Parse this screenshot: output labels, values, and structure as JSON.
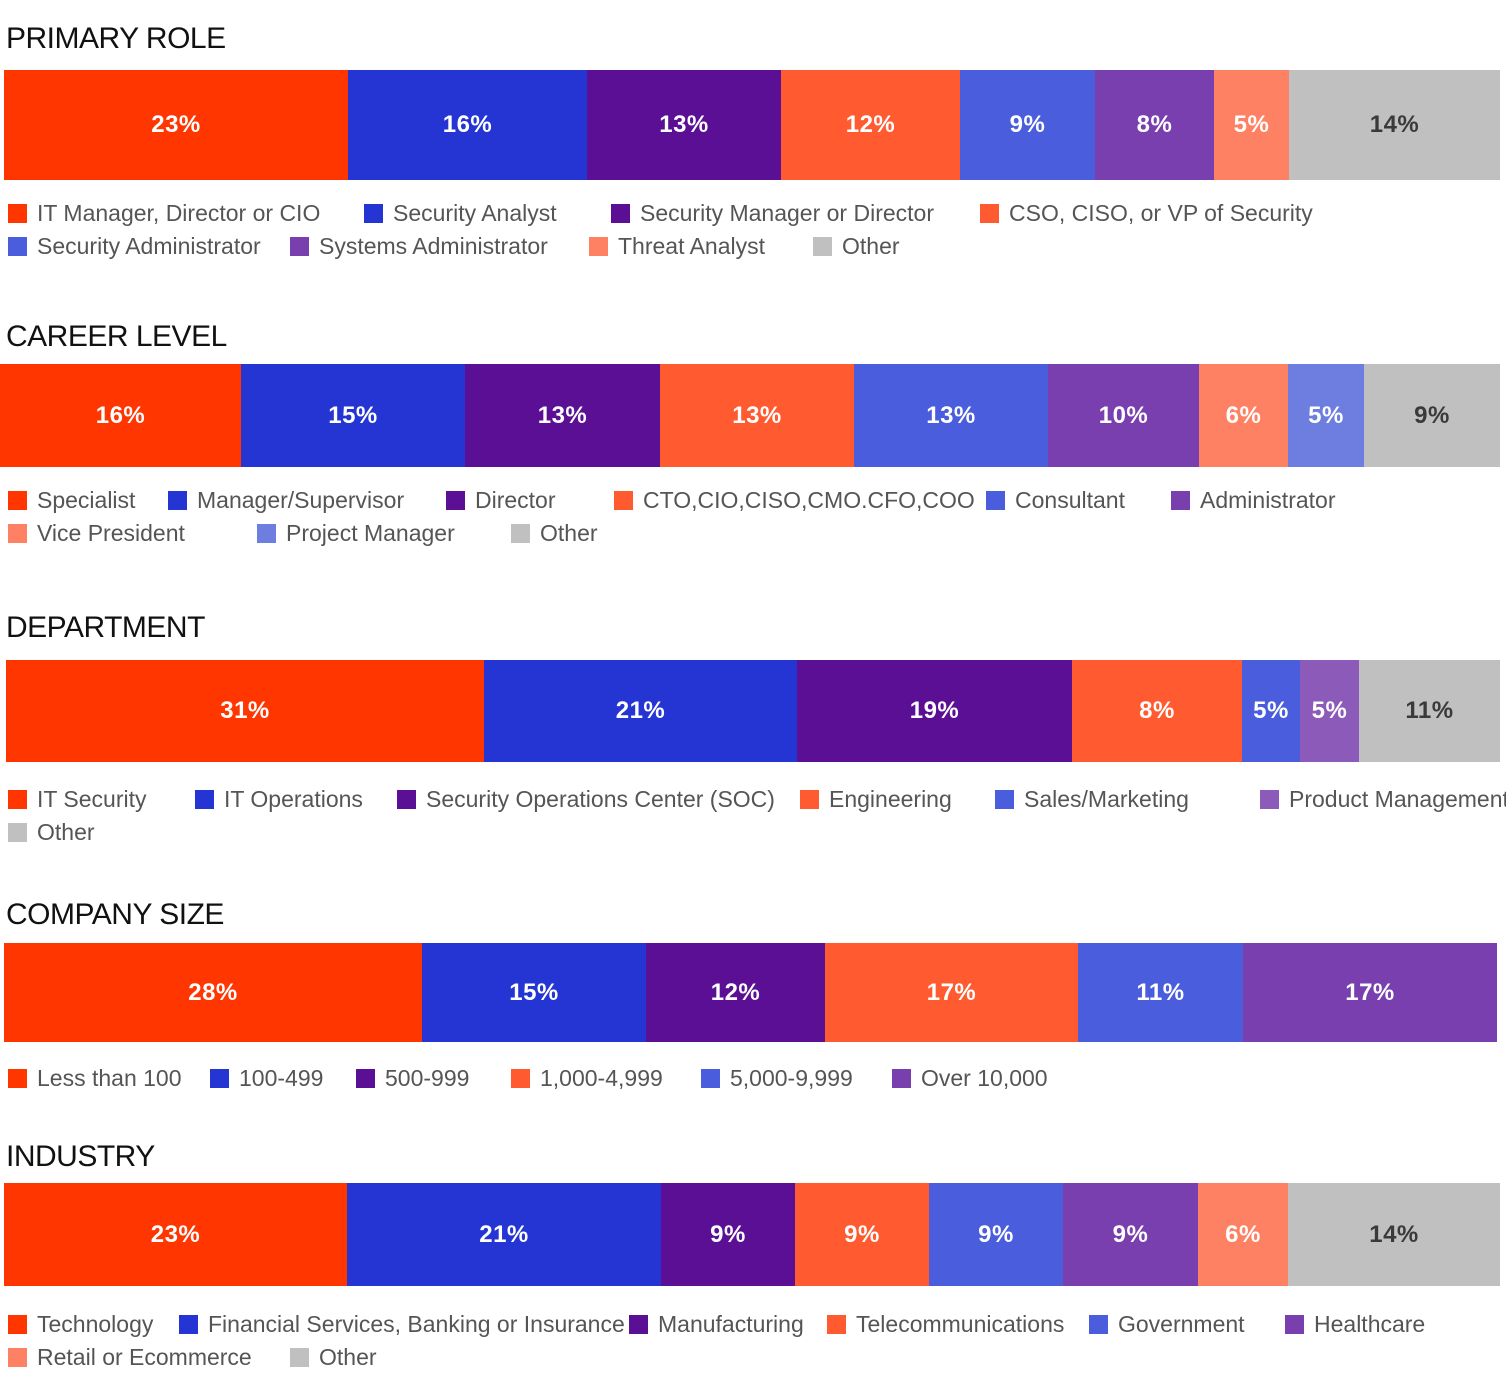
{
  "colors": {
    "red": "#ff3600",
    "blue": "#2435d4",
    "purple": "#5a0f94",
    "orange": "#ff5a30",
    "blue_mid": "#4a5ddc",
    "violet": "#7a3fae",
    "salmon": "#ff8163",
    "periwinkle": "#6d7ee0",
    "orchid": "#8c5ab8",
    "gray": "#c0c0c0"
  },
  "chart_data": [
    {
      "type": "bar",
      "title": "PRIMARY ROLE",
      "categories": [
        "IT Manager, Director or CIO",
        "Security Analyst",
        "Security Manager or Director",
        "CSO, CISO, or VP of Security",
        "Security Administrator",
        "Systems Administrator",
        "Threat Analyst",
        "Other"
      ],
      "values": [
        23,
        16,
        13,
        12,
        9,
        8,
        5,
        14
      ],
      "labels": [
        "23%",
        "16%",
        "13%",
        "12%",
        "9%",
        "8%",
        "5%",
        "14%"
      ],
      "colors": [
        "red",
        "blue",
        "purple",
        "orange",
        "blue_mid",
        "violet",
        "salmon",
        "gray"
      ]
    },
    {
      "type": "bar",
      "title": "CAREER LEVEL",
      "categories": [
        "Specialist",
        "Manager/Supervisor",
        "Director",
        "CTO,CIO,CISO,CMO.CFO,COO",
        "Consultant",
        "Administrator",
        "Vice President",
        "Project Manager",
        "Other"
      ],
      "values": [
        16,
        15,
        13,
        13,
        13,
        10,
        6,
        5,
        9
      ],
      "labels": [
        "16%",
        "15%",
        "13%",
        "13%",
        "13%",
        "10%",
        "6%",
        "5%",
        "9%"
      ],
      "colors": [
        "red",
        "blue",
        "purple",
        "orange",
        "blue_mid",
        "violet",
        "salmon",
        "periwinkle",
        "gray"
      ]
    },
    {
      "type": "bar",
      "title": "DEPARTMENT",
      "categories": [
        "IT Security",
        "IT Operations",
        "Security Operations Center (SOC)",
        "Engineering",
        "Sales/Marketing",
        "Product Management",
        "Other"
      ],
      "values": [
        31,
        21,
        19,
        8,
        5,
        5,
        11
      ],
      "labels": [
        "31%",
        "21%",
        "19%",
        "8%",
        "5%",
        "5%",
        "11%"
      ],
      "colors": [
        "red",
        "blue",
        "purple",
        "orange",
        "blue_mid",
        "orchid",
        "gray"
      ]
    },
    {
      "type": "bar",
      "title": "COMPANY SIZE",
      "categories": [
        "Less than 100",
        "100-499",
        "500-999",
        "1,000-4,999",
        "5,000-9,999",
        "Over 10,000"
      ],
      "values": [
        28,
        15,
        12,
        17,
        11,
        17
      ],
      "labels": [
        "28%",
        "15%",
        "12%",
        "17%",
        "11%",
        "17%"
      ],
      "colors": [
        "red",
        "blue",
        "purple",
        "orange",
        "blue_mid",
        "violet"
      ]
    },
    {
      "type": "bar",
      "title": "INDUSTRY",
      "categories": [
        "Technology",
        "Financial Services, Banking or Insurance",
        "Manufacturing",
        "Telecommunications",
        "Government",
        "Healthcare",
        "Retail or Ecommerce",
        "Other"
      ],
      "values": [
        23,
        21,
        9,
        9,
        9,
        9,
        6,
        14
      ],
      "labels": [
        "23%",
        "21%",
        "9%",
        "9%",
        "9%",
        "9%",
        "6%",
        "14%"
      ],
      "colors": [
        "red",
        "blue",
        "purple",
        "orange",
        "blue_mid",
        "violet",
        "salmon",
        "gray"
      ]
    }
  ]
}
